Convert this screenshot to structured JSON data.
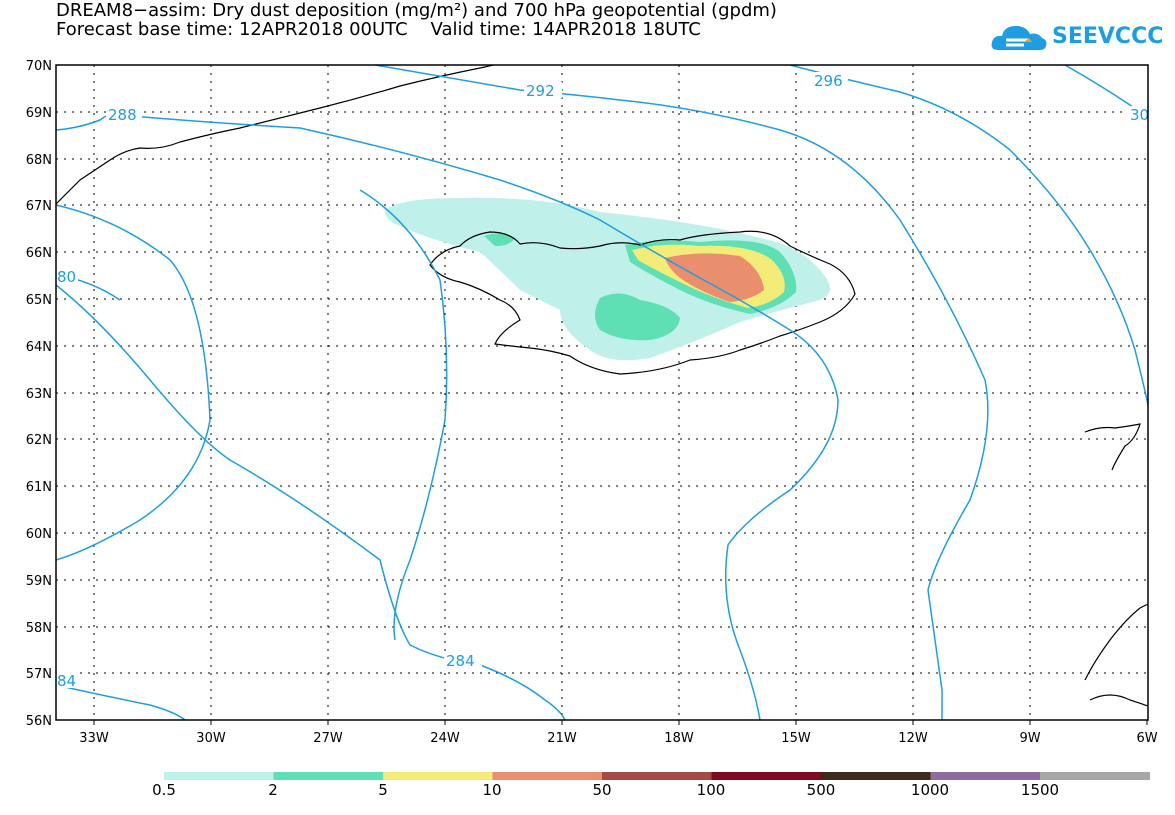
{
  "title": {
    "line1": "DREAM8−assim: Dry dust deposition (mg/m²) and 700 hPa geopotential (gpdm)",
    "line2": "Forecast base time: 12APR2018 00UTC    Valid time: 14APR2018 18UTC"
  },
  "logo": {
    "text": "SEEVCCC",
    "color": "#1e9ee0"
  },
  "map": {
    "lat_labels": [
      "70N",
      "69N",
      "68N",
      "67N",
      "66N",
      "65N",
      "64N",
      "63N",
      "62N",
      "61N",
      "60N",
      "59N",
      "58N",
      "57N",
      "56N"
    ],
    "lon_labels": [
      "33W",
      "30W",
      "27W",
      "24W",
      "21W",
      "18W",
      "15W",
      "12W",
      "9W",
      "6W"
    ],
    "contour_labels": [
      "288",
      "292",
      "296",
      "30",
      "80",
      "284",
      "84"
    ],
    "contour_color": "#1e9ee0"
  },
  "legend": {
    "labels": [
      "0.5",
      "2",
      "5",
      "10",
      "50",
      "100",
      "500",
      "1000",
      "1500"
    ],
    "colors": [
      "#c0f0ea",
      "#5fe0b4",
      "#f4ec78",
      "#ea8f6e",
      "#a24c44",
      "#7e0a24",
      "#3e2a1c",
      "#8e6a9e",
      "#a8a8a8"
    ]
  }
}
